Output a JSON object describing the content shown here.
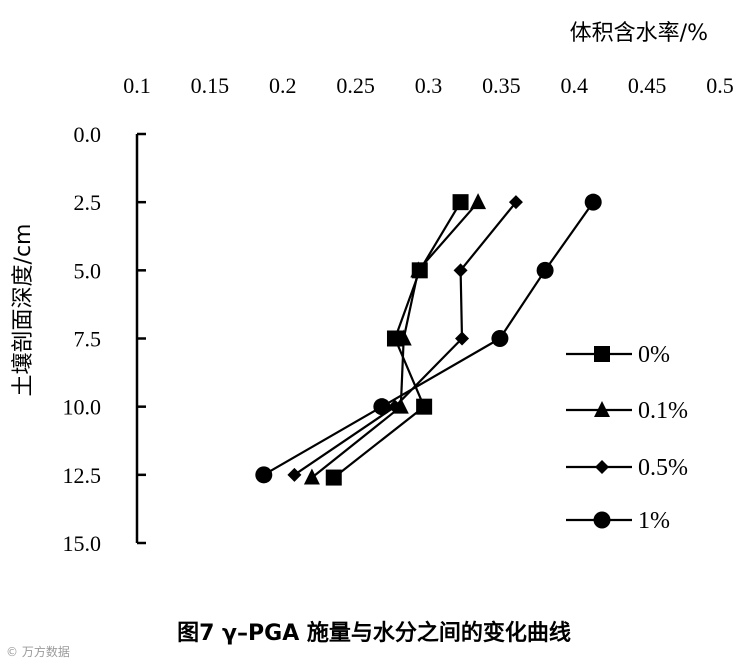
{
  "chart_data": {
    "type": "line",
    "xlabel": "体积含水率/%",
    "ylabel": "土壤剖面深度/cm",
    "x_ticks": [
      "0.1",
      "0.15",
      "0.2",
      "0.25",
      "0.3",
      "0.35",
      "0.4",
      "0.45",
      "0.5"
    ],
    "y_ticks": [
      "0.0",
      "2.5",
      "5.0",
      "7.5",
      "10.0",
      "12.5",
      "15.0"
    ],
    "xlim": [
      0.1,
      0.5
    ],
    "ylim": [
      0,
      15
    ],
    "x_axis_position": "top",
    "y_axis_inverted": true,
    "grid": false,
    "legend_position": "right",
    "series": [
      {
        "name": "0%",
        "marker": "square",
        "x": [
          0.322,
          0.294,
          0.277,
          0.297,
          0.235
        ],
        "y": [
          2.5,
          5.0,
          7.5,
          10.0,
          12.6
        ]
      },
      {
        "name": "0.1%",
        "marker": "triangle",
        "x": [
          0.334,
          0.293,
          0.283,
          0.281,
          0.22
        ],
        "y": [
          2.5,
          5.0,
          7.5,
          10.0,
          12.6
        ]
      },
      {
        "name": "0.5%",
        "marker": "diamond",
        "x": [
          0.36,
          0.322,
          0.323,
          0.277,
          0.208
        ],
        "y": [
          2.5,
          5.0,
          7.5,
          10.0,
          12.5
        ]
      },
      {
        "name": "1%",
        "marker": "circle",
        "x": [
          0.413,
          0.38,
          0.349,
          0.268,
          0.187
        ],
        "y": [
          2.5,
          5.0,
          7.5,
          10.0,
          12.5
        ]
      }
    ]
  },
  "caption": "图7  γ–PGA 施量与水分之间的变化曲线",
  "watermark": "© 万方数据"
}
